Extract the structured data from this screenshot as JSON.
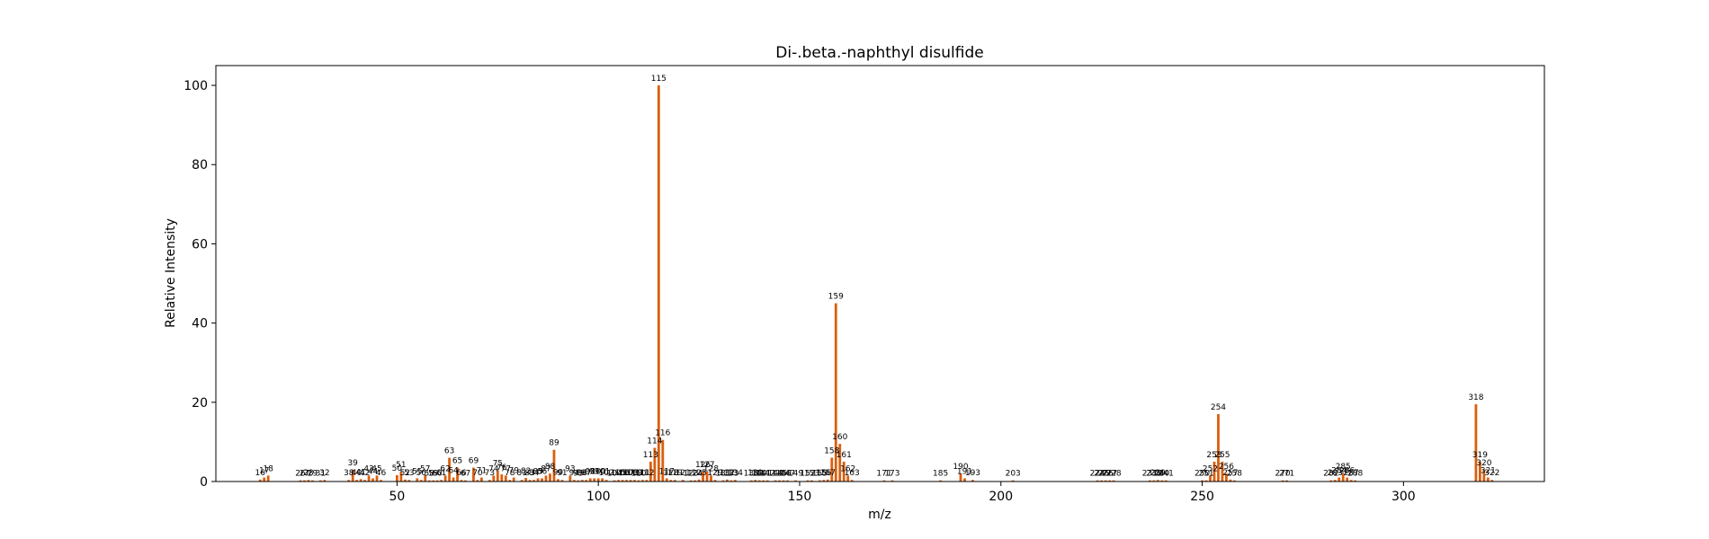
{
  "chart_data": {
    "type": "bar",
    "title": "Di-.beta.-naphthyl disulfide",
    "xlabel": "m/z",
    "ylabel": "Relative Intensity",
    "xlim": [
      5,
      335
    ],
    "ylim": [
      0,
      105
    ],
    "xticks": [
      50,
      100,
      150,
      200,
      250,
      300
    ],
    "yticks": [
      0,
      20,
      40,
      60,
      80,
      100
    ],
    "bar_color": "#d95f0e",
    "grid": false,
    "legend": "none",
    "peaks": [
      {
        "mz": 16,
        "intensity": 0.5,
        "label": "16"
      },
      {
        "mz": 17,
        "intensity": 1.0,
        "label": "17"
      },
      {
        "mz": 18,
        "intensity": 1.5,
        "label": "18"
      },
      {
        "mz": 26,
        "intensity": 0.3,
        "label": "26"
      },
      {
        "mz": 27,
        "intensity": 0.3,
        "label": "27"
      },
      {
        "mz": 28,
        "intensity": 0.4,
        "label": "28"
      },
      {
        "mz": 29,
        "intensity": 0.3,
        "label": "29"
      },
      {
        "mz": 31,
        "intensity": 0.3,
        "label": "31"
      },
      {
        "mz": 32,
        "intensity": 0.4,
        "label": "32"
      },
      {
        "mz": 38,
        "intensity": 0.4,
        "label": "38"
      },
      {
        "mz": 39,
        "intensity": 3.0,
        "label": "39"
      },
      {
        "mz": 40,
        "intensity": 0.4,
        "label": "40"
      },
      {
        "mz": 41,
        "intensity": 0.6,
        "label": "41"
      },
      {
        "mz": 42,
        "intensity": 0.4,
        "label": "42"
      },
      {
        "mz": 43,
        "intensity": 1.5,
        "label": "43"
      },
      {
        "mz": 44,
        "intensity": 0.8,
        "label": "44"
      },
      {
        "mz": 45,
        "intensity": 1.5,
        "label": "45"
      },
      {
        "mz": 46,
        "intensity": 0.4,
        "label": "46"
      },
      {
        "mz": 50,
        "intensity": 1.6,
        "label": "50"
      },
      {
        "mz": 51,
        "intensity": 2.5,
        "label": "51"
      },
      {
        "mz": 52,
        "intensity": 0.5,
        "label": "52"
      },
      {
        "mz": 53,
        "intensity": 0.4,
        "label": "53"
      },
      {
        "mz": 55,
        "intensity": 0.8,
        "label": "55"
      },
      {
        "mz": 56,
        "intensity": 0.4,
        "label": "56"
      },
      {
        "mz": 57,
        "intensity": 1.5,
        "label": "57"
      },
      {
        "mz": 58,
        "intensity": 0.3,
        "label": "58"
      },
      {
        "mz": 59,
        "intensity": 0.3,
        "label": "59"
      },
      {
        "mz": 60,
        "intensity": 0.3,
        "label": "60"
      },
      {
        "mz": 61,
        "intensity": 0.4,
        "label": "61"
      },
      {
        "mz": 62,
        "intensity": 1.5,
        "label": "62"
      },
      {
        "mz": 63,
        "intensity": 6.0,
        "label": "63"
      },
      {
        "mz": 64,
        "intensity": 1.0,
        "label": "64"
      },
      {
        "mz": 65,
        "intensity": 3.5,
        "label": "65"
      },
      {
        "mz": 66,
        "intensity": 0.4,
        "label": "66"
      },
      {
        "mz": 67,
        "intensity": 0.3,
        "label": "67"
      },
      {
        "mz": 69,
        "intensity": 3.5,
        "label": "69"
      },
      {
        "mz": 70,
        "intensity": 0.4,
        "label": "70"
      },
      {
        "mz": 71,
        "intensity": 1.0,
        "label": "71"
      },
      {
        "mz": 73,
        "intensity": 0.4,
        "label": "73"
      },
      {
        "mz": 74,
        "intensity": 1.5,
        "label": "74"
      },
      {
        "mz": 75,
        "intensity": 2.8,
        "label": "75"
      },
      {
        "mz": 76,
        "intensity": 1.8,
        "label": "76"
      },
      {
        "mz": 77,
        "intensity": 1.5,
        "label": "77"
      },
      {
        "mz": 78,
        "intensity": 0.4,
        "label": "78"
      },
      {
        "mz": 79,
        "intensity": 1.0,
        "label": "79"
      },
      {
        "mz": 81,
        "intensity": 0.4,
        "label": "81"
      },
      {
        "mz": 82,
        "intensity": 0.9,
        "label": "82"
      },
      {
        "mz": 83,
        "intensity": 0.4,
        "label": "83"
      },
      {
        "mz": 84,
        "intensity": 0.4,
        "label": "84"
      },
      {
        "mz": 85,
        "intensity": 0.8,
        "label": "85"
      },
      {
        "mz": 86,
        "intensity": 0.8,
        "label": "86"
      },
      {
        "mz": 87,
        "intensity": 1.5,
        "label": "87"
      },
      {
        "mz": 88,
        "intensity": 2.0,
        "label": "88"
      },
      {
        "mz": 89,
        "intensity": 8.0,
        "label": "89"
      },
      {
        "mz": 90,
        "intensity": 0.6,
        "label": "90"
      },
      {
        "mz": 91,
        "intensity": 0.4,
        "label": "91"
      },
      {
        "mz": 93,
        "intensity": 1.5,
        "label": "93"
      },
      {
        "mz": 94,
        "intensity": 0.4,
        "label": "94"
      },
      {
        "mz": 95,
        "intensity": 0.3,
        "label": "95"
      },
      {
        "mz": 96,
        "intensity": 0.4,
        "label": "96"
      },
      {
        "mz": 97,
        "intensity": 0.4,
        "label": "97"
      },
      {
        "mz": 98,
        "intensity": 0.8,
        "label": "98"
      },
      {
        "mz": 99,
        "intensity": 0.8,
        "label": "99"
      },
      {
        "mz": 100,
        "intensity": 0.8,
        "label": "100"
      },
      {
        "mz": 101,
        "intensity": 0.8,
        "label": "101"
      },
      {
        "mz": 102,
        "intensity": 0.4,
        "label": "102"
      },
      {
        "mz": 104,
        "intensity": 0.3,
        "label": "104"
      },
      {
        "mz": 105,
        "intensity": 0.4,
        "label": "105"
      },
      {
        "mz": 106,
        "intensity": 0.4,
        "label": "106"
      },
      {
        "mz": 107,
        "intensity": 0.4,
        "label": "107"
      },
      {
        "mz": 108,
        "intensity": 0.4,
        "label": "108"
      },
      {
        "mz": 109,
        "intensity": 0.4,
        "label": "109"
      },
      {
        "mz": 110,
        "intensity": 0.3,
        "label": "110"
      },
      {
        "mz": 111,
        "intensity": 0.4,
        "label": "111"
      },
      {
        "mz": 112,
        "intensity": 0.4,
        "label": "112"
      },
      {
        "mz": 113,
        "intensity": 5.0,
        "label": "113"
      },
      {
        "mz": 114,
        "intensity": 8.5,
        "label": "114"
      },
      {
        "mz": 115,
        "intensity": 100.0,
        "label": "115"
      },
      {
        "mz": 116,
        "intensity": 10.5,
        "label": "116"
      },
      {
        "mz": 117,
        "intensity": 0.8,
        "label": "117"
      },
      {
        "mz": 118,
        "intensity": 0.4,
        "label": "118"
      },
      {
        "mz": 119,
        "intensity": 0.4,
        "label": "119"
      },
      {
        "mz": 121,
        "intensity": 0.4,
        "label": "121"
      },
      {
        "mz": 123,
        "intensity": 0.3,
        "label": "123"
      },
      {
        "mz": 124,
        "intensity": 0.3,
        "label": "124"
      },
      {
        "mz": 125,
        "intensity": 0.5,
        "label": "125"
      },
      {
        "mz": 126,
        "intensity": 2.5,
        "label": "126"
      },
      {
        "mz": 127,
        "intensity": 2.5,
        "label": "127"
      },
      {
        "mz": 128,
        "intensity": 1.5,
        "label": "128"
      },
      {
        "mz": 129,
        "intensity": 0.4,
        "label": "129"
      },
      {
        "mz": 131,
        "intensity": 0.3,
        "label": "131"
      },
      {
        "mz": 132,
        "intensity": 0.5,
        "label": "132"
      },
      {
        "mz": 133,
        "intensity": 0.3,
        "label": "133"
      },
      {
        "mz": 134,
        "intensity": 0.4,
        "label": "134"
      },
      {
        "mz": 138,
        "intensity": 0.3,
        "label": "138"
      },
      {
        "mz": 139,
        "intensity": 0.4,
        "label": "139"
      },
      {
        "mz": 140,
        "intensity": 0.3,
        "label": "140"
      },
      {
        "mz": 141,
        "intensity": 0.3,
        "label": "141"
      },
      {
        "mz": 142,
        "intensity": 0.3,
        "label": "142"
      },
      {
        "mz": 144,
        "intensity": 0.3,
        "label": "144"
      },
      {
        "mz": 145,
        "intensity": 0.3,
        "label": "145"
      },
      {
        "mz": 146,
        "intensity": 0.3,
        "label": "146"
      },
      {
        "mz": 147,
        "intensity": 0.3,
        "label": "147"
      },
      {
        "mz": 149,
        "intensity": 0.3,
        "label": "149"
      },
      {
        "mz": 152,
        "intensity": 0.3,
        "label": "152"
      },
      {
        "mz": 153,
        "intensity": 0.3,
        "label": "153"
      },
      {
        "mz": 155,
        "intensity": 0.3,
        "label": "155"
      },
      {
        "mz": 156,
        "intensity": 0.4,
        "label": "156"
      },
      {
        "mz": 157,
        "intensity": 0.5,
        "label": "157"
      },
      {
        "mz": 158,
        "intensity": 6.0,
        "label": "158"
      },
      {
        "mz": 159,
        "intensity": 45.0,
        "label": "159"
      },
      {
        "mz": 160,
        "intensity": 9.5,
        "label": "160"
      },
      {
        "mz": 161,
        "intensity": 5.0,
        "label": "161"
      },
      {
        "mz": 162,
        "intensity": 1.5,
        "label": "162"
      },
      {
        "mz": 163,
        "intensity": 0.4,
        "label": "163"
      },
      {
        "mz": 171,
        "intensity": 0.3,
        "label": "171"
      },
      {
        "mz": 173,
        "intensity": 0.3,
        "label": "173"
      },
      {
        "mz": 185,
        "intensity": 0.3,
        "label": "185"
      },
      {
        "mz": 190,
        "intensity": 2.0,
        "label": "190"
      },
      {
        "mz": 191,
        "intensity": 0.8,
        "label": "191"
      },
      {
        "mz": 193,
        "intensity": 0.4,
        "label": "193"
      },
      {
        "mz": 203,
        "intensity": 0.3,
        "label": "203"
      },
      {
        "mz": 224,
        "intensity": 0.3,
        "label": "224"
      },
      {
        "mz": 225,
        "intensity": 0.3,
        "label": "225"
      },
      {
        "mz": 226,
        "intensity": 0.3,
        "label": "226"
      },
      {
        "mz": 227,
        "intensity": 0.3,
        "label": "227"
      },
      {
        "mz": 228,
        "intensity": 0.3,
        "label": "228"
      },
      {
        "mz": 237,
        "intensity": 0.3,
        "label": "237"
      },
      {
        "mz": 238,
        "intensity": 0.3,
        "label": "238"
      },
      {
        "mz": 239,
        "intensity": 0.4,
        "label": "239"
      },
      {
        "mz": 240,
        "intensity": 0.3,
        "label": "240"
      },
      {
        "mz": 241,
        "intensity": 0.3,
        "label": "241"
      },
      {
        "mz": 250,
        "intensity": 0.3,
        "label": "250"
      },
      {
        "mz": 251,
        "intensity": 0.3,
        "label": "251"
      },
      {
        "mz": 252,
        "intensity": 1.5,
        "label": "252"
      },
      {
        "mz": 253,
        "intensity": 5.0,
        "label": "253"
      },
      {
        "mz": 254,
        "intensity": 17.0,
        "label": "254"
      },
      {
        "mz": 255,
        "intensity": 5.0,
        "label": "255"
      },
      {
        "mz": 256,
        "intensity": 2.0,
        "label": "256"
      },
      {
        "mz": 257,
        "intensity": 0.5,
        "label": "257"
      },
      {
        "mz": 258,
        "intensity": 0.3,
        "label": "258"
      },
      {
        "mz": 270,
        "intensity": 0.3,
        "label": "270"
      },
      {
        "mz": 271,
        "intensity": 0.3,
        "label": "271"
      },
      {
        "mz": 282,
        "intensity": 0.3,
        "label": "282"
      },
      {
        "mz": 283,
        "intensity": 0.4,
        "label": "283"
      },
      {
        "mz": 284,
        "intensity": 1.0,
        "label": "284"
      },
      {
        "mz": 285,
        "intensity": 2.0,
        "label": "285"
      },
      {
        "mz": 286,
        "intensity": 1.0,
        "label": "286"
      },
      {
        "mz": 287,
        "intensity": 0.4,
        "label": "287"
      },
      {
        "mz": 288,
        "intensity": 0.3,
        "label": "288"
      },
      {
        "mz": 318,
        "intensity": 19.5,
        "label": "318"
      },
      {
        "mz": 319,
        "intensity": 5.0,
        "label": "319"
      },
      {
        "mz": 320,
        "intensity": 3.0,
        "label": "320"
      },
      {
        "mz": 321,
        "intensity": 1.0,
        "label": "321"
      },
      {
        "mz": 322,
        "intensity": 0.4,
        "label": "322"
      }
    ]
  }
}
